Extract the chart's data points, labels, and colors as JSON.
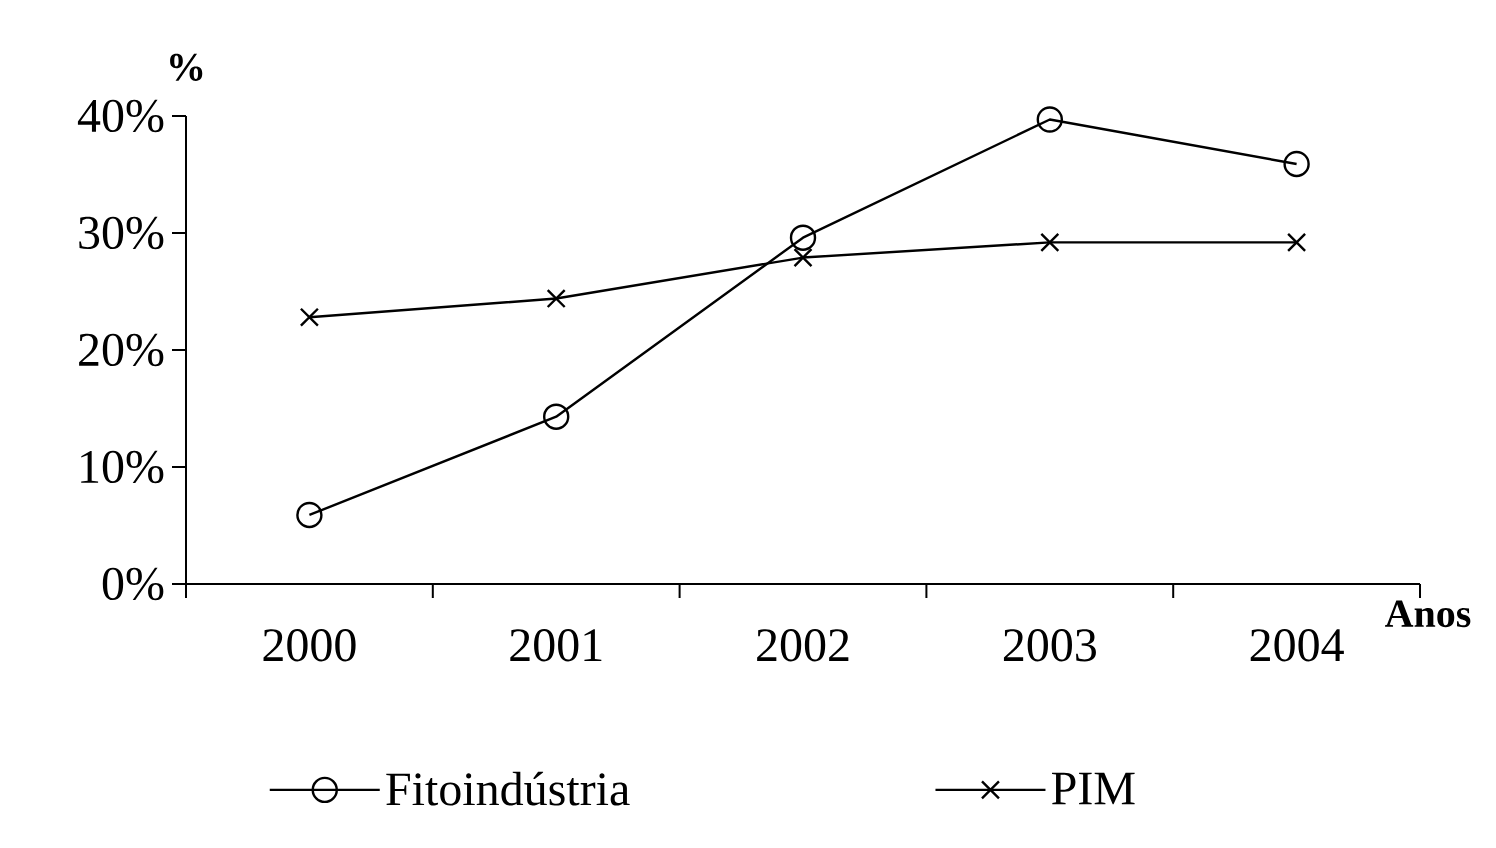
{
  "chart_data": {
    "type": "line",
    "xlabel": "Anos",
    "ylabel": "%",
    "categories": [
      "2000",
      "2001",
      "2002",
      "2003",
      "2004"
    ],
    "series": [
      {
        "name": "Fitoindústria",
        "color": "#000000",
        "marker": "circle",
        "values": [
          5.9,
          14.3,
          29.6,
          39.7,
          35.9
        ]
      },
      {
        "name": "PIM",
        "color": "#000000",
        "marker": "cross",
        "values": [
          22.8,
          24.4,
          27.9,
          29.2,
          29.2
        ]
      }
    ],
    "ylim": [
      0,
      40
    ],
    "yticks": [
      {
        "value": 0,
        "label": "0%"
      },
      {
        "value": 10,
        "label": "10%"
      },
      {
        "value": 20,
        "label": "20%"
      },
      {
        "value": 30,
        "label": "30%"
      },
      {
        "value": 40,
        "label": "40%"
      }
    ],
    "legend": "bottom"
  }
}
